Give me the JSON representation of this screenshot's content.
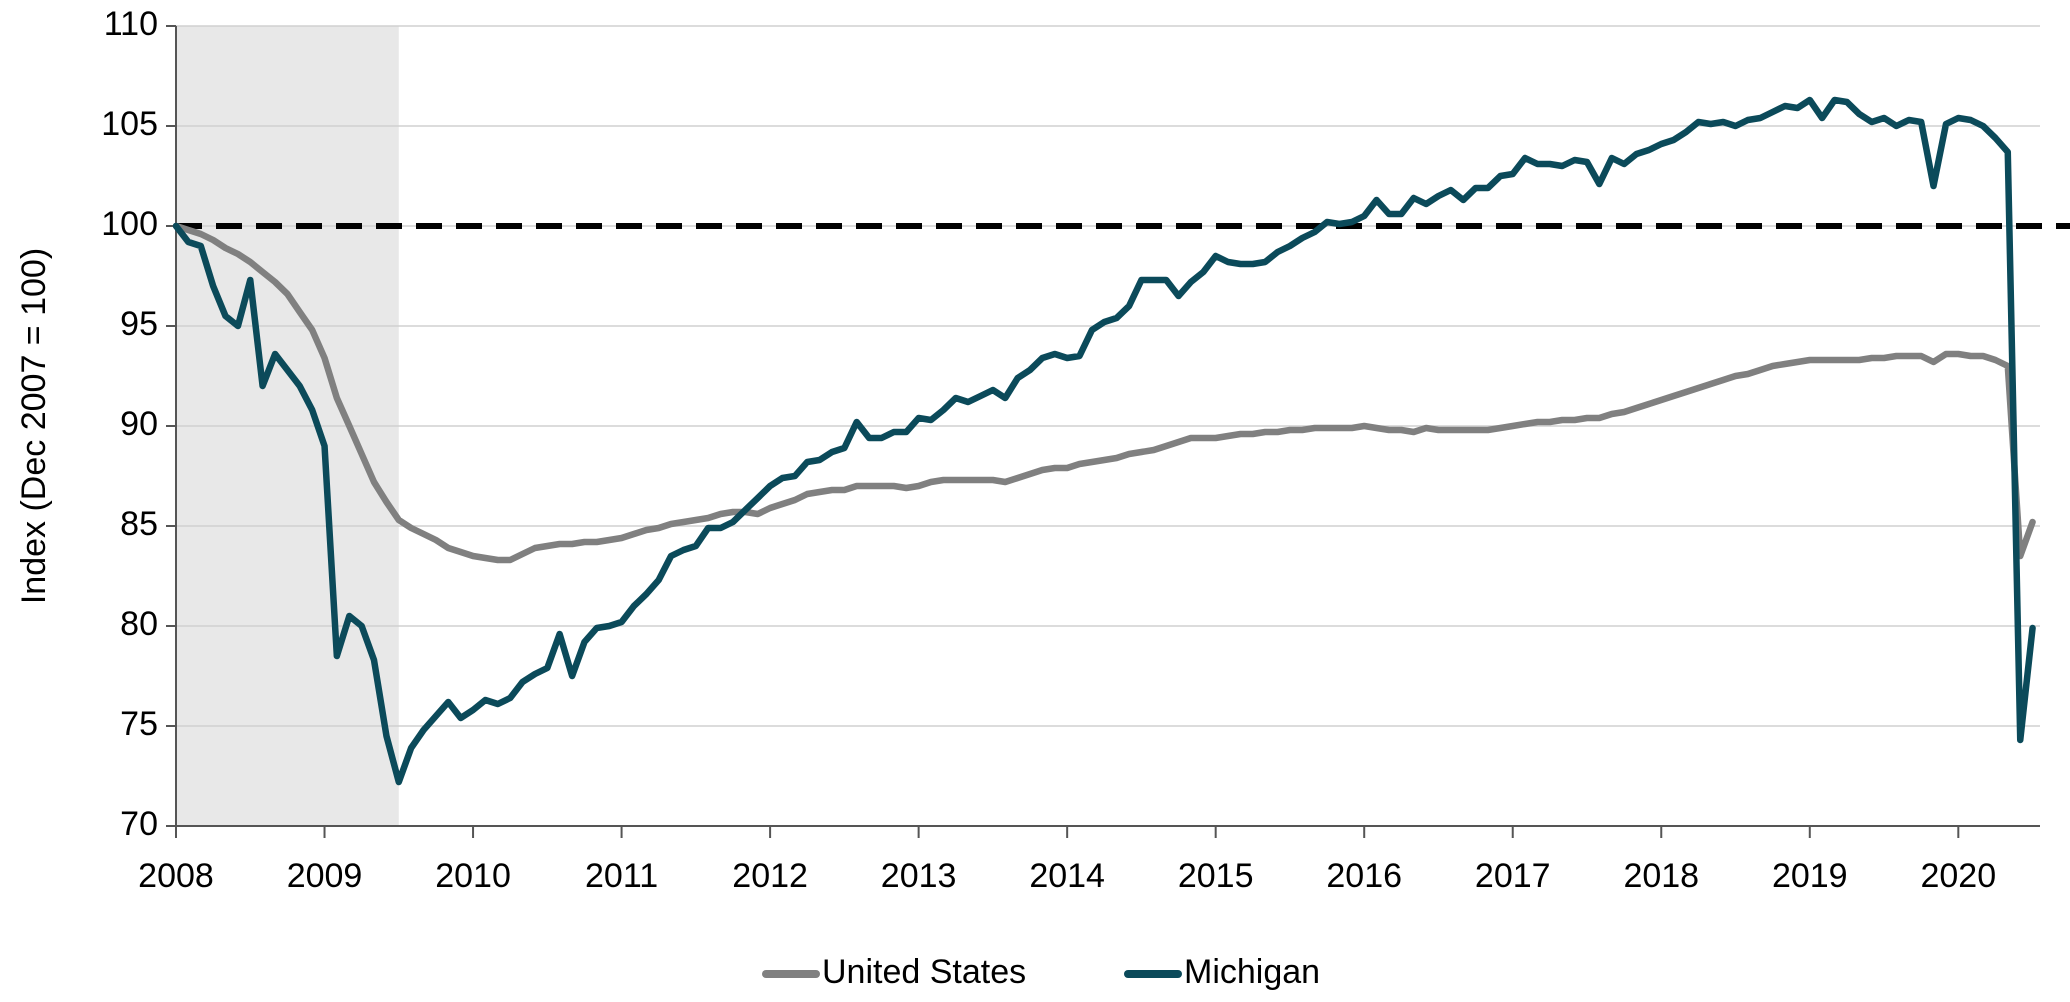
{
  "chart_data": {
    "type": "line",
    "y_label": "Index (Dec 2007 = 100)",
    "x": [
      2008,
      2008.083,
      2008.167,
      2008.25,
      2008.333,
      2008.417,
      2008.5,
      2008.583,
      2008.667,
      2008.75,
      2008.833,
      2008.917,
      2009,
      2009.083,
      2009.167,
      2009.25,
      2009.333,
      2009.417,
      2009.5,
      2009.583,
      2009.667,
      2009.75,
      2009.833,
      2009.917,
      2010,
      2010.083,
      2010.167,
      2010.25,
      2010.333,
      2010.417,
      2010.5,
      2010.583,
      2010.667,
      2010.75,
      2010.833,
      2010.917,
      2011,
      2011.083,
      2011.167,
      2011.25,
      2011.333,
      2011.417,
      2011.5,
      2011.583,
      2011.667,
      2011.75,
      2011.833,
      2011.917,
      2012,
      2012.083,
      2012.167,
      2012.25,
      2012.333,
      2012.417,
      2012.5,
      2012.583,
      2012.667,
      2012.75,
      2012.833,
      2012.917,
      2013,
      2013.083,
      2013.167,
      2013.25,
      2013.333,
      2013.417,
      2013.5,
      2013.583,
      2013.667,
      2013.75,
      2013.833,
      2013.917,
      2014,
      2014.083,
      2014.167,
      2014.25,
      2014.333,
      2014.417,
      2014.5,
      2014.583,
      2014.667,
      2014.75,
      2014.833,
      2014.917,
      2015,
      2015.083,
      2015.167,
      2015.25,
      2015.333,
      2015.417,
      2015.5,
      2015.583,
      2015.667,
      2015.75,
      2015.833,
      2015.917,
      2016,
      2016.083,
      2016.167,
      2016.25,
      2016.333,
      2016.417,
      2016.5,
      2016.583,
      2016.667,
      2016.75,
      2016.833,
      2016.917,
      2017,
      2017.083,
      2017.167,
      2017.25,
      2017.333,
      2017.417,
      2017.5,
      2017.583,
      2017.667,
      2017.75,
      2017.833,
      2017.917,
      2018,
      2018.083,
      2018.167,
      2018.25,
      2018.333,
      2018.417,
      2018.5,
      2018.583,
      2018.667,
      2018.75,
      2018.833,
      2018.917,
      2019,
      2019.083,
      2019.167,
      2019.25,
      2019.333,
      2019.417,
      2019.5,
      2019.583,
      2019.667,
      2019.75,
      2019.833,
      2019.917,
      2020,
      2020.083,
      2020.167,
      2020.25,
      2020.333,
      2020.417,
      2020.5
    ],
    "series": [
      {
        "name": "United States",
        "color": "#808080",
        "values": [
          100,
          99.8,
          99.6,
          99.3,
          98.9,
          98.6,
          98.2,
          97.7,
          97.2,
          96.6,
          95.7,
          94.8,
          93.4,
          91.4,
          90,
          88.6,
          87.2,
          86.2,
          85.3,
          84.9,
          84.6,
          84.3,
          83.9,
          83.7,
          83.5,
          83.4,
          83.3,
          83.3,
          83.6,
          83.9,
          84,
          84.1,
          84.1,
          84.2,
          84.2,
          84.3,
          84.4,
          84.6,
          84.8,
          84.9,
          85.1,
          85.2,
          85.3,
          85.4,
          85.6,
          85.7,
          85.7,
          85.6,
          85.9,
          86.1,
          86.3,
          86.6,
          86.7,
          86.8,
          86.8,
          87,
          87,
          87,
          87,
          86.9,
          87,
          87.2,
          87.3,
          87.3,
          87.3,
          87.3,
          87.3,
          87.2,
          87.4,
          87.6,
          87.8,
          87.9,
          87.9,
          88.1,
          88.2,
          88.3,
          88.4,
          88.6,
          88.7,
          88.8,
          89,
          89.2,
          89.4,
          89.4,
          89.4,
          89.5,
          89.6,
          89.6,
          89.7,
          89.7,
          89.8,
          89.8,
          89.9,
          89.9,
          89.9,
          89.9,
          90,
          89.9,
          89.8,
          89.8,
          89.7,
          89.9,
          89.8,
          89.8,
          89.8,
          89.8,
          89.8,
          89.9,
          90,
          90.1,
          90.2,
          90.2,
          90.3,
          90.3,
          90.4,
          90.4,
          90.6,
          90.7,
          90.9,
          91.1,
          91.3,
          91.5,
          91.7,
          91.9,
          92.1,
          92.3,
          92.5,
          92.6,
          92.8,
          93,
          93.1,
          93.2,
          93.3,
          93.3,
          93.3,
          93.3,
          93.3,
          93.4,
          93.4,
          93.5,
          93.5,
          93.5,
          93.2,
          93.6,
          93.6,
          93.5,
          93.5,
          93.3,
          93,
          83.5,
          85.2
        ]
      },
      {
        "name": "Michigan",
        "color": "#0b4a5a",
        "values": [
          100,
          99.2,
          99,
          97,
          95.5,
          95,
          97.3,
          92,
          93.6,
          92.8,
          92,
          90.8,
          89,
          78.5,
          80.5,
          80,
          78.3,
          74.5,
          72.2,
          73.9,
          74.8,
          75.5,
          76.2,
          75.4,
          75.8,
          76.3,
          76.1,
          76.4,
          77.2,
          77.6,
          77.9,
          79.6,
          77.5,
          79.2,
          79.9,
          80,
          80.2,
          81,
          81.6,
          82.3,
          83.5,
          83.8,
          84,
          84.9,
          84.9,
          85.2,
          85.8,
          86.4,
          87,
          87.4,
          87.5,
          88.2,
          88.3,
          88.7,
          88.9,
          90.2,
          89.4,
          89.4,
          89.7,
          89.7,
          90.4,
          90.3,
          90.8,
          91.4,
          91.2,
          91.5,
          91.8,
          91.4,
          92.4,
          92.8,
          93.4,
          93.6,
          93.4,
          93.5,
          94.8,
          95.2,
          95.4,
          96,
          97.3,
          97.3,
          97.3,
          96.5,
          97.2,
          97.7,
          98.5,
          98.2,
          98.1,
          98.1,
          98.2,
          98.7,
          99,
          99.4,
          99.7,
          100.2,
          100.1,
          100.2,
          100.5,
          101.3,
          100.6,
          100.6,
          101.4,
          101.1,
          101.5,
          101.8,
          101.3,
          101.9,
          101.9,
          102.5,
          102.6,
          103.4,
          103.1,
          103.1,
          103,
          103.3,
          103.2,
          102.1,
          103.4,
          103.1,
          103.6,
          103.8,
          104.1,
          104.3,
          104.7,
          105.2,
          105.1,
          105.2,
          105,
          105.3,
          105.4,
          105.7,
          106,
          105.9,
          106.3,
          105.4,
          106.3,
          106.2,
          105.6,
          105.2,
          105.4,
          105,
          105.3,
          105.2,
          102,
          105.1,
          105.4,
          105.3,
          105,
          104.4,
          103.7,
          74.3,
          79.9
        ]
      }
    ],
    "xlim": [
      2008,
      2020.55
    ],
    "xticks": [
      2008,
      2009,
      2010,
      2011,
      2012,
      2013,
      2014,
      2015,
      2016,
      2017,
      2018,
      2019,
      2020
    ],
    "ylim": [
      70,
      110
    ],
    "yticks": [
      70,
      75,
      80,
      85,
      90,
      95,
      100,
      105,
      110
    ],
    "grid": true,
    "reference_line": 100,
    "shaded_region": [
      2008,
      2009.5
    ],
    "legend": "bottom"
  }
}
